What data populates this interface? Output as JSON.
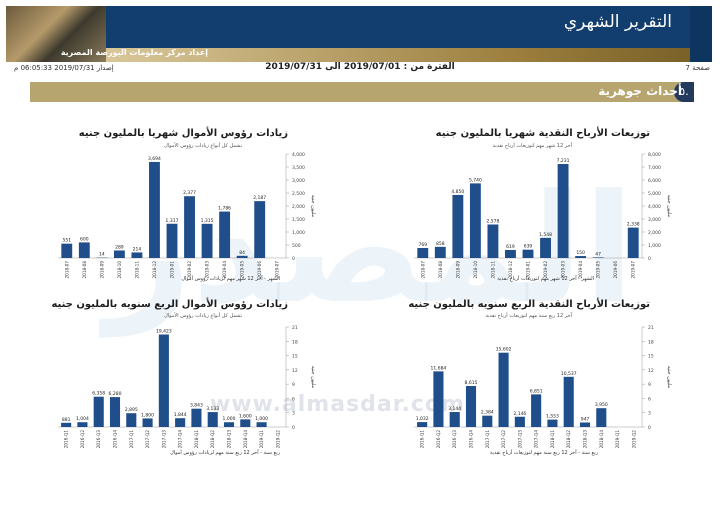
{
  "header": {
    "title": "التقرير الشهري",
    "org": "إعداد مركز معلومات البورصة المصرية",
    "page_label": "صفحة 7",
    "period": "الفترة من : 2019/07/01 الى 2019/07/31",
    "issued": "إصدار 2019/07/31 06:05:33 م"
  },
  "section": {
    "number": "٥.",
    "title": "أحداث جوهرية"
  },
  "watermark": {
    "text": "المصدر",
    "url": "www.almasdar.com"
  },
  "colors": {
    "bar": "#1f4e8a",
    "header_blue": "#123e6f",
    "gold": "#b7a570"
  },
  "chart_data": [
    {
      "id": "dividends-monthly",
      "type": "bar",
      "title": "توزيعات الأرباح النقدية شهريا بالمليون جنيه",
      "subtitle": "آخر 12 شهر مهم لتوزيعات أرباح نقدية",
      "xlabel": "الشهر - آخر 12 شهر مهم لتوزيعات أرباح نقدية",
      "ylabel": "مليون جنيه",
      "ylim": [
        0,
        8000
      ],
      "yticks": [
        "0",
        "1,000",
        "2,000",
        "3,000",
        "4,000",
        "5,000",
        "6,000",
        "7,000",
        "8,000"
      ],
      "categories": [
        "2018-07",
        "2018-08",
        "2018-09",
        "2018-10",
        "2018-11",
        "2018-12",
        "2019-01",
        "2019-02",
        "2019-03",
        "2019-04",
        "2019-05",
        "2019-06",
        "2019-07"
      ],
      "values": [
        769,
        858,
        4850,
        5740,
        2578,
        619,
        639,
        1548,
        7231,
        150,
        47,
        0,
        2338
      ],
      "labels": [
        "769",
        "858",
        "4,850",
        "5,740",
        "2,578",
        "619",
        "639",
        "1,548",
        "7,231",
        "150",
        "47",
        "",
        "2,338"
      ]
    },
    {
      "id": "capital-monthly",
      "type": "bar",
      "title": "زيادات رؤوس الأموال شهريا بالمليون جنيه",
      "subtitle": "تشمل كل أنواع زيادات رؤوس الأموال",
      "xlabel": "الشهر - آخر 12 شهر مهم لزيادات رؤوس أموال",
      "ylabel": "مليون جنيه",
      "ylim": [
        0,
        4000
      ],
      "yticks": [
        "0",
        "500",
        "1,000",
        "1,500",
        "2,000",
        "2,500",
        "3,000",
        "3,500",
        "4,000"
      ],
      "categories": [
        "2018-07",
        "2018-08",
        "2018-09",
        "2018-10",
        "2018-11",
        "2018-12",
        "2019-01",
        "2019-02",
        "2019-03",
        "2019-04",
        "2019-05",
        "2019-06",
        "2019-07"
      ],
      "values": [
        551,
        600,
        14,
        289,
        214,
        3694,
        1317,
        2377,
        1315,
        1786,
        84,
        2187,
        0
      ],
      "labels": [
        "551",
        "600",
        "14",
        "289",
        "214",
        "3,694",
        "1,317",
        "2,377",
        "1,315",
        "1,786",
        "84",
        "2,187",
        ""
      ]
    },
    {
      "id": "dividends-quarterly",
      "type": "bar",
      "title": "توزيعات الأرباح النقدية الربع سنويه بالمليون جنيه",
      "subtitle": "آخر 12 ربع سنة مهم لتوزيعات أرباح نقدية",
      "xlabel": "ربع سنة - آخر 12 ربع سنة مهم لتوزيعات أرباح نقدية",
      "ylabel": "مليون جنيه",
      "ylim": [
        0,
        21000
      ],
      "yticks": [
        "0",
        "3",
        "6",
        "9",
        "12",
        "15",
        "18",
        "21"
      ],
      "categories": [
        "2016-Q1",
        "2016-Q2",
        "2016-Q3",
        "2016-Q4",
        "2017-Q1",
        "2017-Q2",
        "2017-Q3",
        "2017-Q4",
        "2018-Q1",
        "2018-Q2",
        "2018-Q3",
        "2018-Q4",
        "2019-Q1",
        "2019-Q2"
      ],
      "values": [
        1032,
        11684,
        3144,
        8615,
        2384,
        15602,
        2146,
        6851,
        1553,
        10537,
        947,
        3950,
        0,
        0
      ],
      "labels": [
        "1,032",
        "11,684",
        "3,144",
        "8,615",
        "2,384",
        "15,602",
        "2,146",
        "6,851",
        "1,553",
        "10,537",
        "947",
        "3,950",
        "",
        ""
      ]
    },
    {
      "id": "capital-quarterly",
      "type": "bar",
      "title": "زيادات رؤوس الأموال الربع سنويه بالمليون جنيه",
      "subtitle": "تشمل كل أنواع زيادات رؤوس الأموال",
      "xlabel": "ربع سنة - آخر 12 ربع سنة مهم لزيادات رؤوس أموال",
      "ylabel": "مليون جنيه",
      "ylim": [
        0,
        21000
      ],
      "yticks": [
        "0",
        "3",
        "6",
        "9",
        "12",
        "15",
        "18",
        "21"
      ],
      "categories": [
        "2016-Q1",
        "2016-Q2",
        "2016-Q3",
        "2016-Q4",
        "2017-Q1",
        "2017-Q2",
        "2017-Q3",
        "2017-Q4",
        "2018-Q1",
        "2018-Q2",
        "2018-Q3",
        "2018-Q4",
        "2019-Q1",
        "2019-Q2"
      ],
      "values": [
        881,
        1004,
        6358,
        6280,
        2895,
        1800,
        19423,
        1844,
        3843,
        3133,
        1000,
        1600,
        1000,
        0
      ],
      "labels": [
        "881",
        "1,004",
        "6,358",
        "6,280",
        "2,895",
        "1,800",
        "19,423",
        "1,844",
        "3,843",
        "3,133",
        "1,000",
        "1,600",
        "1,000",
        ""
      ]
    }
  ]
}
